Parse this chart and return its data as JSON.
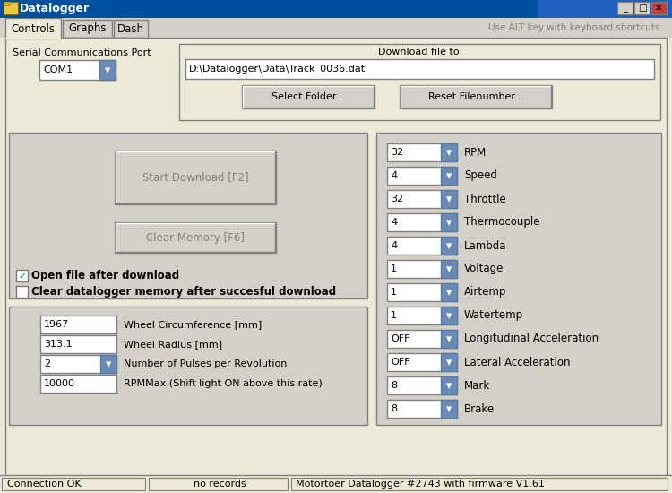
{
  "title": "Datalogger",
  "bg_color": "#d4d0c8",
  "titlebar_color": "#0050a0",
  "window_bg": "#ece9d8",
  "tab_bg": "#ece9d8",
  "tab_inactive_bg": "#d4d0c8",
  "tabs": [
    "Controls",
    "Graphs",
    "Dash"
  ],
  "tab_hint": "Use ALT key with keyboard shortcuts",
  "serial_port_label": "Serial Communications Port",
  "serial_port_value": "COM1",
  "download_label": "Download file to:",
  "download_path": "D:\\Datalogger\\Data\\Track_0036.dat",
  "btn_select_folder": "Select Folder...",
  "btn_reset_filenumber": "Reset Filenumber...",
  "btn_start_download": "Start Download [F2]",
  "btn_clear_memory": "Clear Memory [F6]",
  "checkbox1_checked": true,
  "checkbox1_label": "Open file after download",
  "checkbox2_checked": false,
  "checkbox2_label": "Clear datalogger memory after succesful download",
  "fields": [
    {
      "value": "1967",
      "label": "Wheel Circumference [mm]",
      "dropdown": false
    },
    {
      "value": "313.1",
      "label": "Wheel Radius [mm]",
      "dropdown": false
    },
    {
      "value": "2",
      "label": "Number of Pulses per Revolution",
      "dropdown": true
    },
    {
      "value": "10000",
      "label": "RPMMax (Shift light ON above this rate)",
      "dropdown": false
    }
  ],
  "right_panel": [
    {
      "value": "32",
      "label": "RPM"
    },
    {
      "value": "4",
      "label": "Speed"
    },
    {
      "value": "32",
      "label": "Throttle"
    },
    {
      "value": "4",
      "label": "Thermocouple"
    },
    {
      "value": "4",
      "label": "Lambda"
    },
    {
      "value": "1",
      "label": "Voltage"
    },
    {
      "value": "1",
      "label": "Airtemp"
    },
    {
      "value": "1",
      "label": "Watertemp"
    },
    {
      "value": "OFF",
      "label": "Longitudinal Acceleration"
    },
    {
      "value": "OFF",
      "label": "Lateral Acceleration"
    },
    {
      "value": "8",
      "label": "Mark"
    },
    {
      "value": "8",
      "label": "Brake"
    }
  ],
  "status_left": "Connection OK",
  "status_mid": "no records",
  "status_right": "Motortoer Datalogger #2743 with firmware V1.61",
  "field_bg": "#ffffff",
  "button_bg": "#ece9d8",
  "panel_bg": "#ece9d8",
  "inner_panel_bg": "#d4d0c8",
  "dropdown_arrow_color": "#6b8bb5",
  "statusbar_bg": "#ece9d8"
}
